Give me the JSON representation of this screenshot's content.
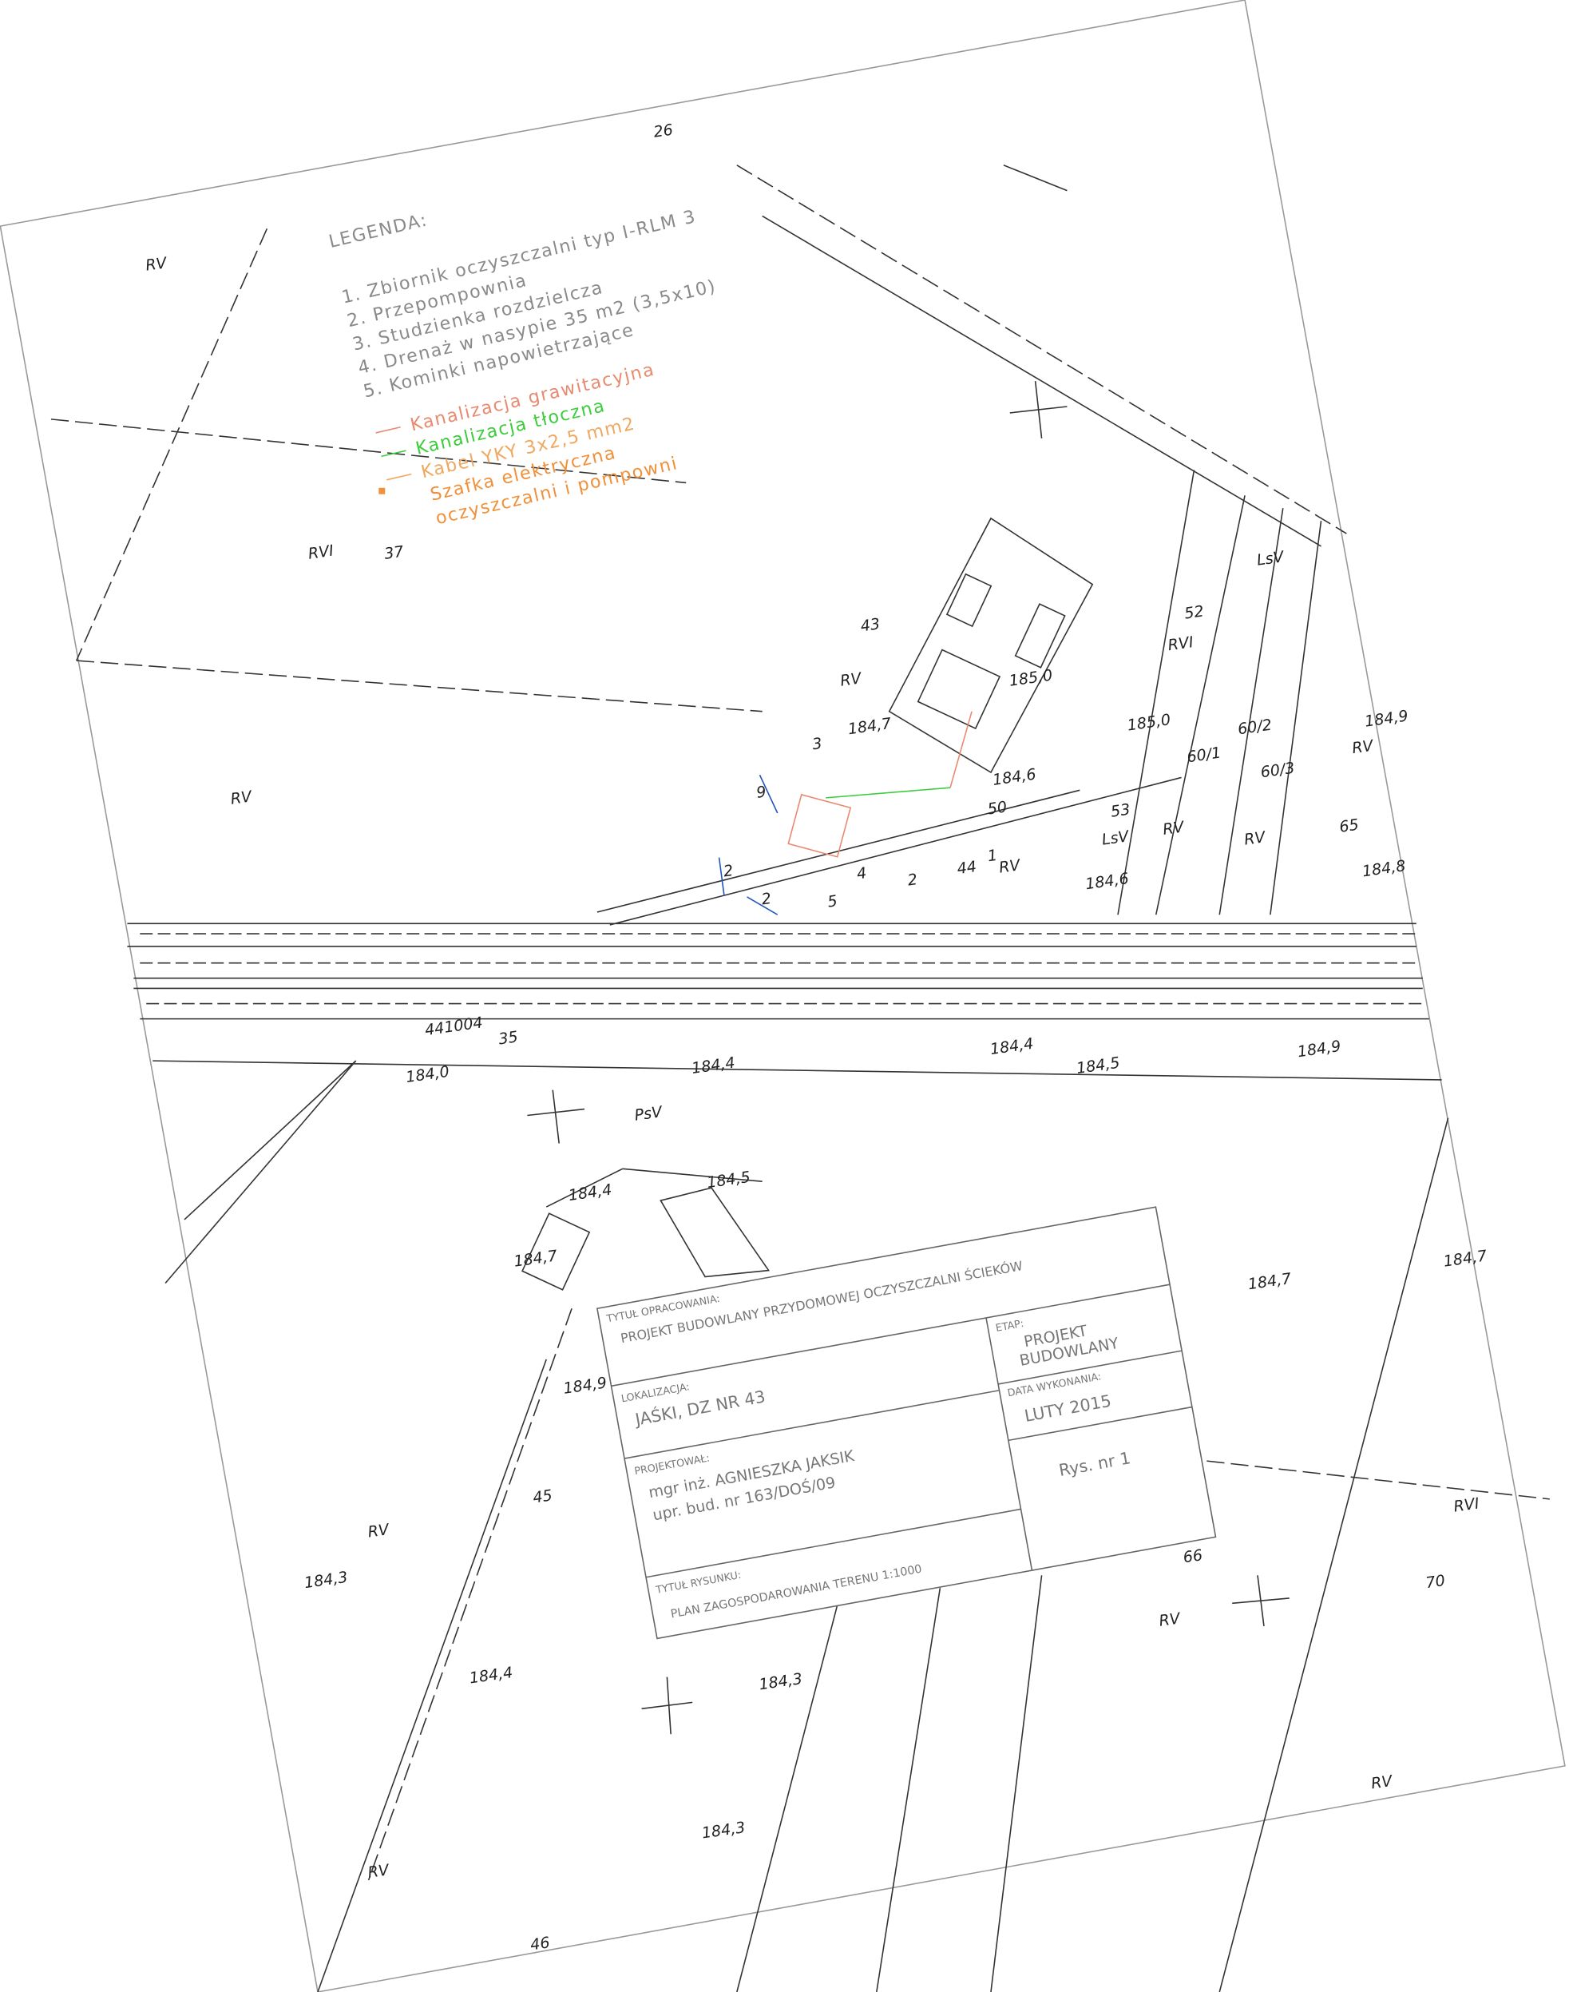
{
  "legend": {
    "title": "LEGENDA:",
    "items": [
      "1. Zbiornik oczyszczalni typ I-RLM 3",
      "2. Przepompownia",
      "3. Studzienka rozdzielcza",
      "4. Drenaż w nasypie 35 m2 (3,5x10)",
      "5. Kominki napowietrzające"
    ],
    "lines": [
      {
        "label": "Kanalizacja grawitacyjna",
        "color": "#e88a70"
      },
      {
        "label": "Kanalizacja tłoczna",
        "color": "#3ccc3c"
      },
      {
        "label": "Kabel YKY 3x2,5 mm2",
        "color": "#f0a860"
      },
      {
        "label": "Szafka elektryczna",
        "color": "#f0903a"
      }
    ],
    "note": "oczyszczalni i pompowni"
  },
  "title_block": {
    "title_label": "TYTUŁ OPRACOWANIA:",
    "title": "PROJEKT BUDOWLANY PRZYDOMOWEJ OCZYSZCZALNI ŚCIEKÓW",
    "location_label": "LOKALIZACJA:",
    "location": "JAŚKI, DZ NR 43",
    "stage_label": "ETAP:",
    "stage": [
      "PROJEKT",
      "BUDOWLANY"
    ],
    "designer_label": "PROJEKTOWAŁ:",
    "designer": [
      "mgr inż. AGNIESZKA JAKSIK",
      "upr. bud. nr 163/DOŚ/09"
    ],
    "date_label": "DATA WYKONANIA:",
    "date": "LUTY 2015",
    "drawing_no": "Rys. nr 1",
    "drawing_title_label": "TYTUŁ RYSUNKU:",
    "drawing_title": "PLAN ZAGOSPODAROWANIA TERENU 1:1000"
  },
  "map_labels": [
    "RV",
    "RVI",
    "37",
    "43",
    "RV",
    "RV",
    "52",
    "RVI",
    "LsV",
    "185,0",
    "60/2",
    "60/1",
    "60/3",
    "184,9",
    "RV",
    "53",
    "LsV",
    "RV",
    "RV",
    "65",
    "184,8",
    "184,7",
    "184,6",
    "50",
    "44",
    "RV",
    "184,6",
    "441004",
    "35",
    "184,0",
    "184,4",
    "184,4",
    "184,5",
    "184,9",
    "PsV",
    "184,4",
    "184,5",
    "184,7",
    "184,9",
    "184,7",
    "184,7",
    "45",
    "RV",
    "184,3",
    "66",
    "70",
    "RVI",
    "RV",
    "184,4",
    "184,3",
    "184,3",
    "RV",
    "RV",
    "46",
    "185,0",
    "26",
    "3",
    "1",
    "2",
    "4",
    "5",
    "9",
    "2",
    "2"
  ]
}
